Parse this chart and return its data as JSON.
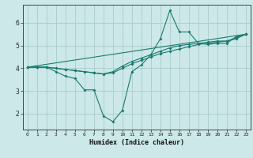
{
  "xlabel": "Humidex (Indice chaleur)",
  "bg_color": "#cce8e8",
  "line_color": "#1a7a6e",
  "grid_color": "#aacccc",
  "xlim": [
    -0.5,
    23.5
  ],
  "ylim": [
    1.3,
    6.8
  ],
  "xticks": [
    0,
    1,
    2,
    3,
    4,
    5,
    6,
    7,
    8,
    9,
    10,
    11,
    12,
    13,
    14,
    15,
    16,
    17,
    18,
    19,
    20,
    21,
    22,
    23
  ],
  "yticks": [
    2,
    3,
    4,
    5,
    6
  ],
  "series1_x": [
    0,
    1,
    2,
    3,
    4,
    5,
    6,
    7,
    8,
    9,
    10,
    11,
    12,
    13,
    14,
    15,
    16,
    17,
    18,
    19,
    20,
    21,
    22,
    23
  ],
  "series1_y": [
    4.05,
    4.05,
    4.05,
    3.85,
    3.65,
    3.55,
    3.05,
    3.05,
    1.9,
    1.65,
    2.15,
    3.85,
    4.15,
    4.6,
    5.3,
    6.55,
    5.6,
    5.6,
    5.1,
    5.05,
    5.1,
    5.1,
    5.4,
    5.5
  ],
  "series2_x": [
    0,
    1,
    2,
    3,
    4,
    5,
    6,
    7,
    8,
    9,
    10,
    11,
    12,
    13,
    14,
    15,
    16,
    17,
    18,
    19,
    20,
    21,
    22,
    23
  ],
  "series2_y": [
    4.05,
    4.05,
    4.05,
    4.0,
    3.95,
    3.9,
    3.85,
    3.8,
    3.75,
    3.85,
    4.1,
    4.3,
    4.45,
    4.6,
    4.75,
    4.9,
    5.0,
    5.05,
    5.1,
    5.15,
    5.2,
    5.2,
    5.35,
    5.5
  ],
  "series3_x": [
    0,
    1,
    2,
    3,
    4,
    5,
    6,
    7,
    8,
    9,
    10,
    11,
    12,
    13,
    14,
    15,
    16,
    17,
    18,
    19,
    20,
    21,
    22,
    23
  ],
  "series3_y": [
    4.05,
    4.05,
    4.05,
    4.0,
    3.95,
    3.9,
    3.85,
    3.8,
    3.75,
    3.8,
    4.0,
    4.2,
    4.35,
    4.5,
    4.65,
    4.75,
    4.85,
    4.95,
    5.05,
    5.1,
    5.15,
    5.2,
    5.3,
    5.5
  ],
  "series4_x": [
    0,
    23
  ],
  "series4_y": [
    4.05,
    5.5
  ]
}
